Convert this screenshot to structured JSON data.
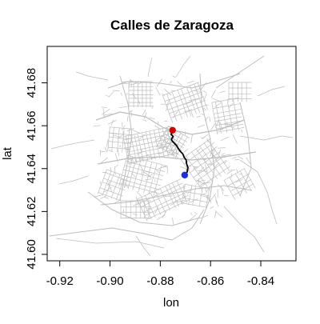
{
  "chart_data": {
    "type": "map",
    "title": "Calles de Zaragoza",
    "xlabel": "lon",
    "ylabel": "lat",
    "xlim": [
      -0.925,
      -0.826
    ],
    "ylim": [
      41.597,
      41.697
    ],
    "x_ticks": [
      -0.92,
      -0.9,
      -0.88,
      -0.86,
      -0.84
    ],
    "x_tick_labels": [
      "-0.92",
      "-0.90",
      "-0.88",
      "-0.86",
      "-0.84"
    ],
    "y_ticks": [
      41.6,
      41.62,
      41.64,
      41.66,
      41.68
    ],
    "y_tick_labels": [
      "41.60",
      "41.62",
      "41.64",
      "41.66",
      "41.68"
    ],
    "grid": false,
    "colors": {
      "streets": "#bdbdbd",
      "route": "#000000",
      "start": "#cc0000",
      "end": "#1f2fd1"
    },
    "start_point": {
      "lon": -0.8751,
      "lat": 41.6579
    },
    "end_point": {
      "lon": -0.8703,
      "lat": 41.637
    },
    "route": [
      [
        -0.8751,
        41.6579
      ],
      [
        -0.8757,
        41.656
      ],
      [
        -0.8749,
        41.655
      ],
      [
        -0.8756,
        41.6537
      ],
      [
        -0.8752,
        41.6528
      ],
      [
        -0.8744,
        41.6518
      ],
      [
        -0.8734,
        41.6506
      ],
      [
        -0.8728,
        41.6493
      ],
      [
        -0.872,
        41.648
      ],
      [
        -0.871,
        41.6468
      ],
      [
        -0.8705,
        41.6453
      ],
      [
        -0.8697,
        41.644
      ],
      [
        -0.8695,
        41.6422
      ],
      [
        -0.869,
        41.6405
      ],
      [
        -0.8693,
        41.6385
      ],
      [
        -0.8698,
        41.6375
      ],
      [
        -0.8703,
        41.637
      ]
    ]
  }
}
